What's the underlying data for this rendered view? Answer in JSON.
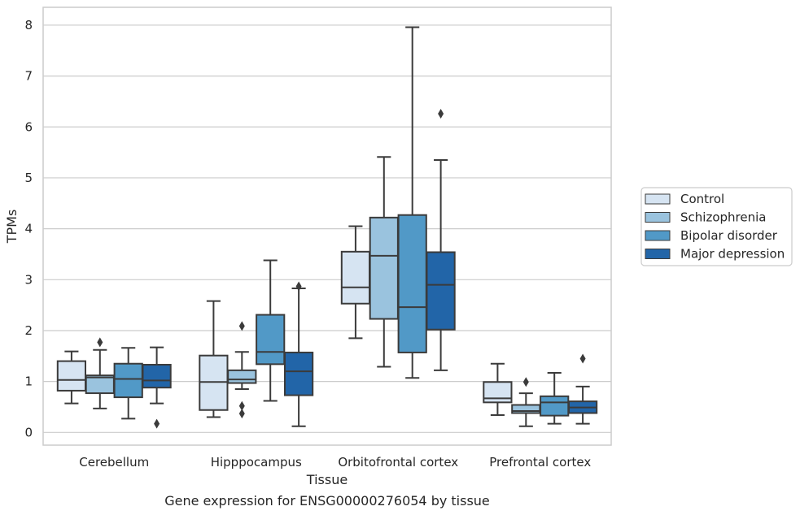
{
  "chart_data": {
    "type": "box",
    "caption": "Gene expression for ENSG00000276054 by tissue",
    "xlabel": "Tissue",
    "ylabel": "TPMs",
    "ylim": [
      -0.25,
      8.35
    ],
    "yticks": [
      0,
      1,
      2,
      3,
      4,
      5,
      6,
      7,
      8
    ],
    "grid": "horizontal",
    "legend_position": "right",
    "categories": [
      "Cerebellum",
      "Hipppocampus",
      "Orbitofrontal cortex",
      "Prefrontal cortex"
    ],
    "series": [
      {
        "name": "Control",
        "color": "#d6e4f2",
        "boxes": [
          {
            "whislo": 0.57,
            "q1": 0.82,
            "med": 1.03,
            "q3": 1.4,
            "whishi": 1.59,
            "fliers": []
          },
          {
            "whislo": 0.3,
            "q1": 0.44,
            "med": 0.99,
            "q3": 1.51,
            "whishi": 2.58,
            "fliers": []
          },
          {
            "whislo": 1.85,
            "q1": 2.53,
            "med": 2.85,
            "q3": 3.55,
            "whishi": 4.05,
            "fliers": []
          },
          {
            "whislo": 0.34,
            "q1": 0.59,
            "med": 0.67,
            "q3": 0.99,
            "whishi": 1.35,
            "fliers": []
          }
        ]
      },
      {
        "name": "Schizophrenia",
        "color": "#9ac3de",
        "boxes": [
          {
            "whislo": 0.47,
            "q1": 0.77,
            "med": 1.08,
            "q3": 1.12,
            "whishi": 1.62,
            "fliers": [
              1.77
            ]
          },
          {
            "whislo": 0.85,
            "q1": 0.97,
            "med": 1.04,
            "q3": 1.22,
            "whishi": 1.58,
            "fliers": [
              2.09,
              0.52,
              0.37
            ]
          },
          {
            "whislo": 1.29,
            "q1": 2.23,
            "med": 3.47,
            "q3": 4.22,
            "whishi": 5.41,
            "fliers": []
          },
          {
            "whislo": 0.12,
            "q1": 0.38,
            "med": 0.42,
            "q3": 0.54,
            "whishi": 0.77,
            "fliers": [
              0.99
            ]
          }
        ]
      },
      {
        "name": "Bipolar disorder",
        "color": "#5199c7",
        "boxes": [
          {
            "whislo": 0.27,
            "q1": 0.69,
            "med": 1.05,
            "q3": 1.35,
            "whishi": 1.66,
            "fliers": []
          },
          {
            "whislo": 0.62,
            "q1": 1.34,
            "med": 1.58,
            "q3": 2.31,
            "whishi": 3.38,
            "fliers": []
          },
          {
            "whislo": 1.07,
            "q1": 1.57,
            "med": 2.46,
            "q3": 4.27,
            "whishi": 7.96,
            "fliers": []
          },
          {
            "whislo": 0.17,
            "q1": 0.33,
            "med": 0.59,
            "q3": 0.71,
            "whishi": 1.17,
            "fliers": []
          }
        ]
      },
      {
        "name": "Major depression",
        "color": "#2265a8",
        "boxes": [
          {
            "whislo": 0.57,
            "q1": 0.88,
            "med": 1.02,
            "q3": 1.33,
            "whishi": 1.67,
            "fliers": [
              0.17
            ]
          },
          {
            "whislo": 0.12,
            "q1": 0.73,
            "med": 1.2,
            "q3": 1.57,
            "whishi": 2.83,
            "fliers": [
              2.87
            ]
          },
          {
            "whislo": 1.22,
            "q1": 2.02,
            "med": 2.9,
            "q3": 3.54,
            "whishi": 5.35,
            "fliers": [
              6.26
            ]
          },
          {
            "whislo": 0.17,
            "q1": 0.38,
            "med": 0.49,
            "q3": 0.61,
            "whishi": 0.9,
            "fliers": [
              1.45
            ]
          }
        ]
      }
    ]
  }
}
